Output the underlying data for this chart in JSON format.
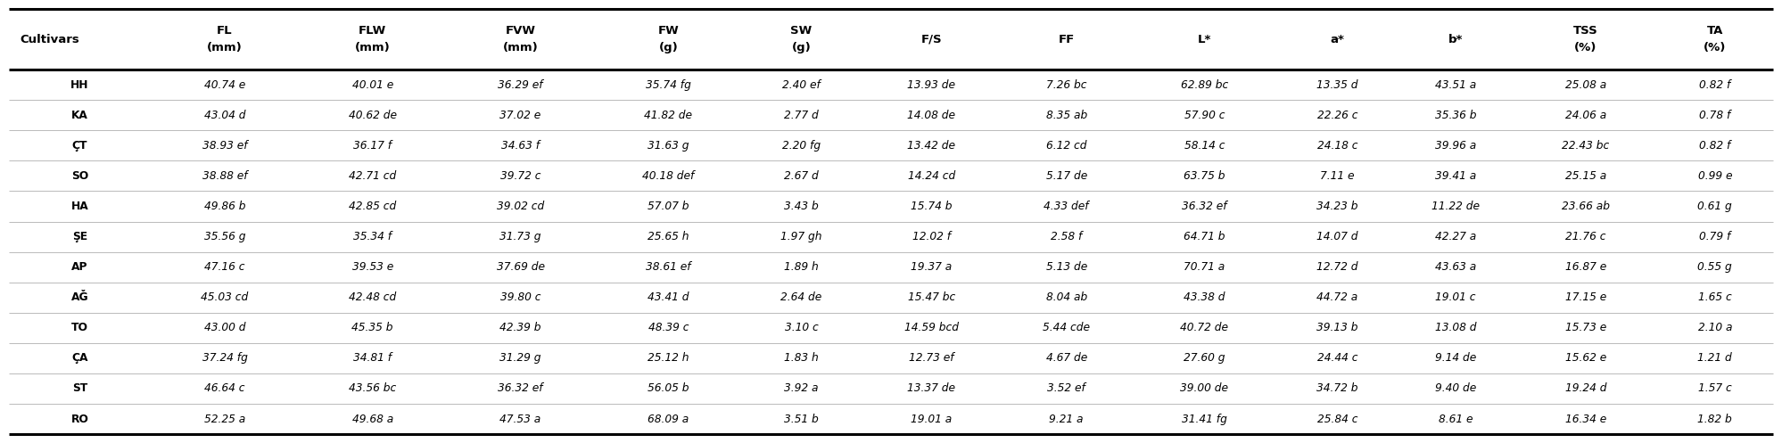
{
  "columns": [
    "Cultivars",
    "FL\n(mm)",
    "FLW\n(mm)",
    "FVW\n(mm)",
    "FW\n(g)",
    "SW\n(g)",
    "F/S",
    "FF",
    "L*",
    "a*",
    "b*",
    "TSS\n(%)",
    "TA\n(%)"
  ],
  "col_header_line1": [
    "Cultivars",
    "FL",
    "FLW",
    "FVW",
    "FW",
    "SW",
    "F/S",
    "FF",
    "L*",
    "a*",
    "b*",
    "TSS",
    "TA"
  ],
  "col_header_line2": [
    "",
    "(mm)",
    "(mm)",
    "(mm)",
    "(g)",
    "(g)",
    "",
    "",
    "",
    "",
    "",
    "(%)",
    "(%)"
  ],
  "col_widths_rel": [
    7.2,
    7.5,
    7.5,
    7.5,
    7.5,
    6.0,
    7.2,
    6.5,
    7.5,
    6.0,
    6.0,
    7.2,
    5.9
  ],
  "rows": [
    [
      "HH",
      "40.74 e",
      "40.01 e",
      "36.29 ef",
      "35.74 fg",
      "2.40 ef",
      "13.93 de",
      "7.26 bc",
      "62.89 bc",
      "13.35 d",
      "43.51 a",
      "25.08 a",
      "0.82 f"
    ],
    [
      "KA",
      "43.04 d",
      "40.62 de",
      "37.02 e",
      "41.82 de",
      "2.77 d",
      "14.08 de",
      "8.35 ab",
      "57.90 c",
      "22.26 c",
      "35.36 b",
      "24.06 a",
      "0.78 f"
    ],
    [
      "ÇT",
      "38.93 ef",
      "36.17 f",
      "34.63 f",
      "31.63 g",
      "2.20 fg",
      "13.42 de",
      "6.12 cd",
      "58.14 c",
      "24.18 c",
      "39.96 a",
      "22.43 bc",
      "0.82 f"
    ],
    [
      "SO",
      "38.88 ef",
      "42.71 cd",
      "39.72 c",
      "40.18 def",
      "2.67 d",
      "14.24 cd",
      "5.17 de",
      "63.75 b",
      "7.11 e",
      "39.41 a",
      "25.15 a",
      "0.99 e"
    ],
    [
      "HA",
      "49.86 b",
      "42.85 cd",
      "39.02 cd",
      "57.07 b",
      "3.43 b",
      "15.74 b",
      "4.33 def",
      "36.32 ef",
      "34.23 b",
      "11.22 de",
      "23.66 ab",
      "0.61 g"
    ],
    [
      "ŞE",
      "35.56 g",
      "35.34 f",
      "31.73 g",
      "25.65 h",
      "1.97 gh",
      "12.02 f",
      "2.58 f",
      "64.71 b",
      "14.07 d",
      "42.27 a",
      "21.76 c",
      "0.79 f"
    ],
    [
      "AP",
      "47.16 c",
      "39.53 e",
      "37.69 de",
      "38.61 ef",
      "1.89 h",
      "19.37 a",
      "5.13 de",
      "70.71 a",
      "12.72 d",
      "43.63 a",
      "16.87 e",
      "0.55 g"
    ],
    [
      "AĞ",
      "45.03 cd",
      "42.48 cd",
      "39.80 c",
      "43.41 d",
      "2.64 de",
      "15.47 bc",
      "8.04 ab",
      "43.38 d",
      "44.72 a",
      "19.01 c",
      "17.15 e",
      "1.65 c"
    ],
    [
      "TO",
      "43.00 d",
      "45.35 b",
      "42.39 b",
      "48.39 c",
      "3.10 c",
      "14.59 bcd",
      "5.44 cde",
      "40.72 de",
      "39.13 b",
      "13.08 d",
      "15.73 e",
      "2.10 a"
    ],
    [
      "ÇA",
      "37.24 fg",
      "34.81 f",
      "31.29 g",
      "25.12 h",
      "1.83 h",
      "12.73 ef",
      "4.67 de",
      "27.60 g",
      "24.44 c",
      "9.14 de",
      "15.62 e",
      "1.21 d"
    ],
    [
      "ST",
      "46.64 c",
      "43.56 bc",
      "36.32 ef",
      "56.05 b",
      "3.92 a",
      "13.37 de",
      "3.52 ef",
      "39.00 de",
      "34.72 b",
      "9.40 de",
      "19.24 d",
      "1.57 c"
    ],
    [
      "RO",
      "52.25 a",
      "49.68 a",
      "47.53 a",
      "68.09 a",
      "3.51 b",
      "19.01 a",
      "9.21 a",
      "31.41 fg",
      "25.84 c",
      "8.61 e",
      "16.34 e",
      "1.82 b"
    ]
  ]
}
